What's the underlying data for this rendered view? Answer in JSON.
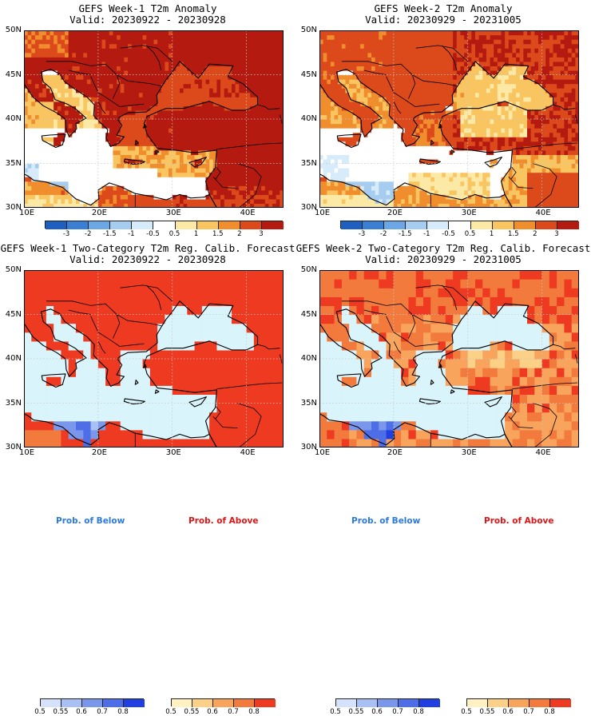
{
  "panels": [
    {
      "title": "GEFS Week-1 T2m Anomaly",
      "valid": "Valid: 20230922 - 20230928"
    },
    {
      "title": "GEFS Week-2 T2m Anomaly",
      "valid": "Valid: 20230929 - 20231005"
    },
    {
      "title": "GEFS Week-1 Two-Category T2m Reg. Calib. Forecast",
      "valid": "Valid: 20230922 - 20230928"
    },
    {
      "title": "GEFS Week-2 Two-Category T2m Reg. Calib. Forecast",
      "valid": "Valid: 20230929 - 20231005"
    }
  ],
  "lat_ticks": [
    "50N",
    "45N",
    "40N",
    "35N",
    "30N"
  ],
  "lon_ticks": [
    "10E",
    "20E",
    "30E",
    "40E"
  ],
  "anomaly_colorbar": {
    "labels": [
      "-3",
      "-2",
      "-1.5",
      "-1",
      "-0.5",
      "0.5",
      "1",
      "1.5",
      "2",
      "3"
    ],
    "colors": [
      "#1f5fbf",
      "#3b7fd4",
      "#6aa7e4",
      "#a6cdf0",
      "#d6ecfa",
      "#ffffff",
      "#fde9a6",
      "#f9c561",
      "#f08d2c",
      "#dc4a1c",
      "#b51a10"
    ]
  },
  "below_colorbar": {
    "labels": [
      "0.5",
      "0.55",
      "0.6",
      "0.7",
      "0.8"
    ],
    "colors": [
      "#d6e2fb",
      "#a9c0f4",
      "#7a97ec",
      "#4d6ee6",
      "#1f3fe0"
    ]
  },
  "above_colorbar": {
    "labels": [
      "0.5",
      "0.55",
      "0.6",
      "0.7",
      "0.8"
    ],
    "colors": [
      "#fff1c2",
      "#fbd087",
      "#f8a45d",
      "#f27a3c",
      "#ee3a20"
    ]
  },
  "legend": {
    "below": "Prob. of Below",
    "above": "Prob. of Above"
  },
  "colors": {
    "below_text": "#2a7ae0",
    "above_text": "#e01414"
  }
}
